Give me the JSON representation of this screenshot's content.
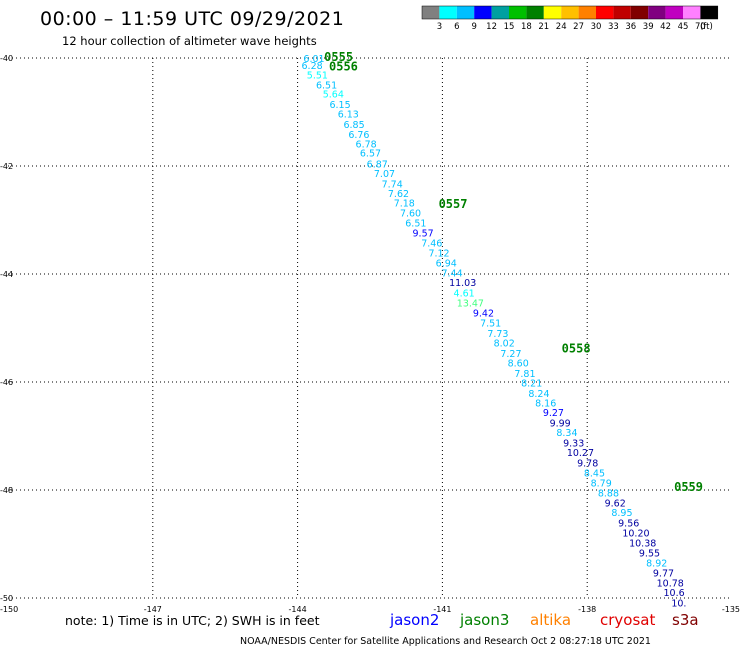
{
  "title": "00:00 – 11:59 UTC 09/29/2021",
  "subtitle": "12 hour collection of altimeter wave heights",
  "legend": {
    "unit": "(ft)",
    "colors": [
      "#808080",
      "#00ffff",
      "#00bfff",
      "#0000ff",
      "#00a0a0",
      "#00c000",
      "#008000",
      "#ffff00",
      "#ffc000",
      "#ff8000",
      "#ff0000",
      "#c00000",
      "#800000",
      "#800080",
      "#c000c0",
      "#ff80ff",
      "#000000"
    ],
    "labels": [
      "3",
      "6",
      "9",
      "12",
      "15",
      "18",
      "21",
      "24",
      "27",
      "30",
      "33",
      "36",
      "39",
      "42",
      "45",
      "70"
    ]
  },
  "chart_data": {
    "type": "scatter",
    "title": "00:00 – 11:59 UTC 09/29/2021",
    "xlabel": "",
    "ylabel": "",
    "xlim": [
      -150,
      -135
    ],
    "ylim": [
      -50,
      -40
    ],
    "x_ticks": [
      "-150",
      "-147",
      "-144",
      "-141",
      "-138",
      "-135"
    ],
    "y_ticks": [
      "-40",
      "-42",
      "-44",
      "-46",
      "-48",
      "-50"
    ],
    "grid": true,
    "points": [
      {
        "x": -143.66,
        "y": -40.0,
        "v": "6.01",
        "c": "#00bfff"
      },
      {
        "x": -143.7,
        "y": -40.13,
        "v": "6.28",
        "c": "#00bfff"
      },
      {
        "x": -143.59,
        "y": -40.31,
        "v": "5.51",
        "c": "#00ffff"
      },
      {
        "x": -143.4,
        "y": -40.49,
        "v": "6.51",
        "c": "#00bfff"
      },
      {
        "x": -143.26,
        "y": -40.66,
        "v": "5.64",
        "c": "#00ffff"
      },
      {
        "x": -143.12,
        "y": -40.85,
        "v": "6.15",
        "c": "#00bfff"
      },
      {
        "x": -142.95,
        "y": -41.03,
        "v": "6.13",
        "c": "#00bfff"
      },
      {
        "x": -142.83,
        "y": -41.22,
        "v": "6.85",
        "c": "#00bfff"
      },
      {
        "x": -142.73,
        "y": -41.41,
        "v": "6.76",
        "c": "#00bfff"
      },
      {
        "x": -142.58,
        "y": -41.58,
        "v": "6.78",
        "c": "#00bfff"
      },
      {
        "x": -142.49,
        "y": -41.75,
        "v": "6.57",
        "c": "#00bfff"
      },
      {
        "x": -142.35,
        "y": -41.95,
        "v": "6.87",
        "c": "#00bfff"
      },
      {
        "x": -142.2,
        "y": -42.13,
        "v": "7.07",
        "c": "#00bfff"
      },
      {
        "x": -142.04,
        "y": -42.32,
        "v": "7.74",
        "c": "#00bfff"
      },
      {
        "x": -141.91,
        "y": -42.5,
        "v": "7.62",
        "c": "#00bfff"
      },
      {
        "x": -141.79,
        "y": -42.68,
        "v": "7.18",
        "c": "#00bfff"
      },
      {
        "x": -141.66,
        "y": -42.86,
        "v": "7.60",
        "c": "#00bfff"
      },
      {
        "x": -141.55,
        "y": -43.05,
        "v": "6.51",
        "c": "#00bfff"
      },
      {
        "x": -141.4,
        "y": -43.23,
        "v": "9.57",
        "c": "#0000ff"
      },
      {
        "x": -141.22,
        "y": -43.42,
        "v": "7.46",
        "c": "#00bfff"
      },
      {
        "x": -141.07,
        "y": -43.6,
        "v": "7.12",
        "c": "#00bfff"
      },
      {
        "x": -140.92,
        "y": -43.79,
        "v": "6.94",
        "c": "#00bfff"
      },
      {
        "x": -140.8,
        "y": -43.97,
        "v": "7.44",
        "c": "#00bfff"
      },
      {
        "x": -140.58,
        "y": -44.15,
        "v": "11.03",
        "c": "#0000a0"
      },
      {
        "x": -140.55,
        "y": -44.34,
        "v": "4.61",
        "c": "#00ffff"
      },
      {
        "x": -140.42,
        "y": -44.53,
        "v": "13.47",
        "c": "#40ff80"
      },
      {
        "x": -140.15,
        "y": -44.71,
        "v": "9.42",
        "c": "#0000ff"
      },
      {
        "x": -140.0,
        "y": -44.9,
        "v": "7.51",
        "c": "#00bfff"
      },
      {
        "x": -139.85,
        "y": -45.09,
        "v": "7.73",
        "c": "#00bfff"
      },
      {
        "x": -139.72,
        "y": -45.27,
        "v": "8.02",
        "c": "#00bfff"
      },
      {
        "x": -139.58,
        "y": -45.46,
        "v": "7.27",
        "c": "#00bfff"
      },
      {
        "x": -139.43,
        "y": -45.64,
        "v": "8.60",
        "c": "#00bfff"
      },
      {
        "x": -139.29,
        "y": -45.83,
        "v": "7.81",
        "c": "#00bfff"
      },
      {
        "x": -139.15,
        "y": -46.01,
        "v": "8.21",
        "c": "#00bfff"
      },
      {
        "x": -139.0,
        "y": -46.2,
        "v": "8.24",
        "c": "#00bfff"
      },
      {
        "x": -138.86,
        "y": -46.38,
        "v": "8.16",
        "c": "#00bfff"
      },
      {
        "x": -138.7,
        "y": -46.56,
        "v": "9.27",
        "c": "#0000ff"
      },
      {
        "x": -138.56,
        "y": -46.75,
        "v": "9.99",
        "c": "#0000a0"
      },
      {
        "x": -138.42,
        "y": -46.93,
        "v": "8.34",
        "c": "#00bfff"
      },
      {
        "x": -138.28,
        "y": -47.12,
        "v": "9.33",
        "c": "#0000a0"
      },
      {
        "x": -138.14,
        "y": -47.3,
        "v": "10.27",
        "c": "#0000a0"
      },
      {
        "x": -137.99,
        "y": -47.49,
        "v": "9.78",
        "c": "#0000a0"
      },
      {
        "x": -137.85,
        "y": -47.68,
        "v": "8.45",
        "c": "#00bfff"
      },
      {
        "x": -137.71,
        "y": -47.86,
        "v": "8.79",
        "c": "#00bfff"
      },
      {
        "x": -137.56,
        "y": -48.05,
        "v": "8.88",
        "c": "#00bfff"
      },
      {
        "x": -137.42,
        "y": -48.23,
        "v": "9.62",
        "c": "#0000a0"
      },
      {
        "x": -137.28,
        "y": -48.41,
        "v": "8.95",
        "c": "#00bfff"
      },
      {
        "x": -137.14,
        "y": -48.6,
        "v": "9.56",
        "c": "#0000a0"
      },
      {
        "x": -136.99,
        "y": -48.79,
        "v": "10.20",
        "c": "#0000a0"
      },
      {
        "x": -136.85,
        "y": -48.97,
        "v": "10.38",
        "c": "#0000a0"
      },
      {
        "x": -136.71,
        "y": -49.16,
        "v": "9.55",
        "c": "#0000a0"
      },
      {
        "x": -136.56,
        "y": -49.34,
        "v": "8.92",
        "c": "#00bfff"
      },
      {
        "x": -136.42,
        "y": -49.53,
        "v": "9.77",
        "c": "#0000a0"
      },
      {
        "x": -136.28,
        "y": -49.71,
        "v": "10.78",
        "c": "#0000a0"
      },
      {
        "x": -136.2,
        "y": -49.89,
        "v": "10.6",
        "c": "#0000a0"
      },
      {
        "x": -136.1,
        "y": -50.08,
        "v": "10.",
        "c": "#0000a0"
      }
    ],
    "pass_labels": [
      {
        "x": -143.15,
        "y": -39.98,
        "text": "0555"
      },
      {
        "x": -143.05,
        "y": -40.16,
        "text": "0556"
      },
      {
        "x": -140.78,
        "y": -42.7,
        "text": "0557"
      },
      {
        "x": -138.23,
        "y": -45.38,
        "text": "0558"
      },
      {
        "x": -135.9,
        "y": -47.94,
        "text": "0559"
      }
    ]
  },
  "footer": {
    "note": "note:  1) Time is in UTC;  2) SWH is in feet",
    "satellites": [
      {
        "name": "jason2",
        "color": "#0000ff"
      },
      {
        "name": "jason3",
        "color": "#008000"
      },
      {
        "name": "altika",
        "color": "#ff8000"
      },
      {
        "name": "cryosat",
        "color": "#e00000"
      },
      {
        "name": "s3a",
        "color": "#800000"
      }
    ],
    "credit": "NOAA/NESDIS Center for Satellite Applications and Research    Oct  2 08:27:18 UTC 2021"
  }
}
